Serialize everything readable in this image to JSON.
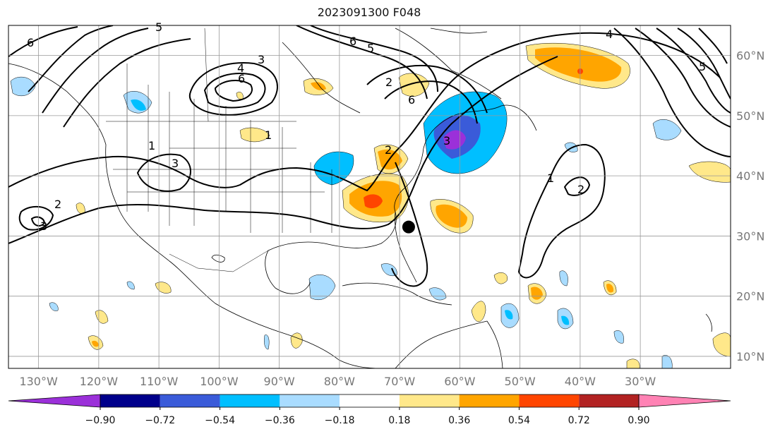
{
  "title": "2023091300 F048",
  "map": {
    "lon_range": [
      -135,
      -15
    ],
    "lat_range": [
      8,
      65
    ],
    "lon_ticks": [
      -130,
      -120,
      -110,
      -100,
      -90,
      -80,
      -70,
      -60,
      -50,
      -40,
      -30
    ],
    "lon_tick_labels": [
      "130°W",
      "120°W",
      "110°W",
      "100°W",
      "90°W",
      "80°W",
      "70°W",
      "60°W",
      "50°W",
      "40°W",
      "30°W"
    ],
    "lat_ticks": [
      10,
      20,
      30,
      40,
      50,
      60
    ],
    "lat_tick_labels": [
      "10°N",
      "20°N",
      "30°N",
      "40°N",
      "50°N",
      "60°N"
    ],
    "grid": true,
    "storm_marker": {
      "lon": -68.5,
      "lat": 31.5
    }
  },
  "colorbar": {
    "levels": [
      "−0.90",
      "−0.72",
      "−0.54",
      "−0.36",
      "−0.18",
      "0.18",
      "0.36",
      "0.54",
      "0.72",
      "0.90"
    ],
    "colors": [
      "#9b30d9",
      "#00008b",
      "#3a5bd9",
      "#00bfff",
      "#a9dcff",
      "#ffffff",
      "#ffe88a",
      "#ffa500",
      "#ff4500",
      "#b22222",
      "#ff82b4"
    ],
    "extend": "both"
  },
  "contour_labels": [
    "1",
    "2",
    "3",
    "4",
    "5",
    "6"
  ]
}
